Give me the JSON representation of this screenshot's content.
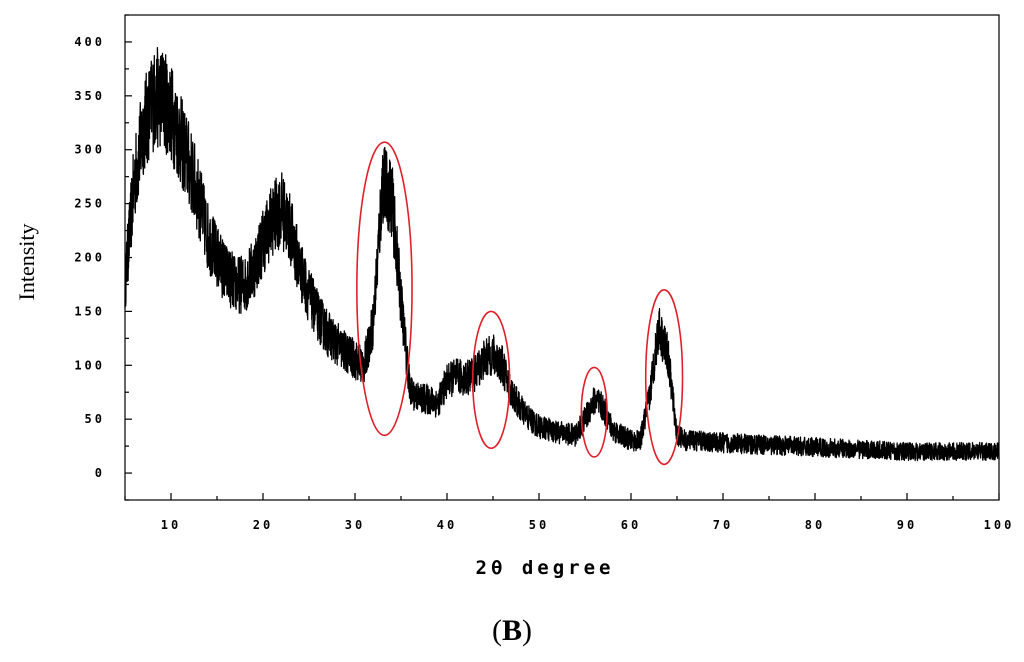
{
  "chart_data": {
    "type": "line",
    "xlabel": "2θ degree",
    "ylabel": "Intensity",
    "xlim": [
      5,
      100
    ],
    "ylim": [
      -25,
      425
    ],
    "x_ticks": [
      10,
      20,
      30,
      40,
      50,
      60,
      70,
      80,
      90,
      100
    ],
    "y_ticks": [
      0,
      50,
      100,
      150,
      200,
      250,
      300,
      350,
      400
    ],
    "grid": false,
    "legend": "none",
    "line_color": "#000000",
    "highlight_color": "#e0202a",
    "series": [
      {
        "x": [
          5,
          6,
          7,
          8,
          9,
          10,
          11,
          12,
          13,
          14,
          15,
          16,
          17,
          18,
          19,
          20,
          21,
          22,
          23,
          24,
          25,
          26,
          27,
          28,
          29,
          30,
          31,
          32,
          33,
          34,
          35,
          36,
          37,
          38,
          39,
          40,
          41,
          42,
          43,
          44,
          45,
          46,
          47,
          48,
          49,
          50,
          52,
          54,
          55,
          56,
          57,
          58,
          59,
          60,
          61,
          62,
          63,
          64,
          65,
          66,
          67,
          70,
          75,
          80,
          85,
          90,
          95,
          100
        ],
        "y": [
          175,
          270,
          320,
          345,
          350,
          335,
          310,
          285,
          255,
          220,
          200,
          185,
          175,
          175,
          190,
          215,
          235,
          245,
          225,
          190,
          165,
          145,
          130,
          120,
          112,
          105,
          100,
          140,
          270,
          255,
          160,
          75,
          70,
          68,
          65,
          85,
          90,
          88,
          92,
          105,
          110,
          100,
          75,
          60,
          50,
          43,
          38,
          35,
          50,
          68,
          60,
          40,
          35,
          30,
          30,
          70,
          135,
          110,
          35,
          30,
          30,
          28,
          26,
          24,
          22,
          20,
          20,
          20
        ]
      }
    ],
    "highlighted_peaks": [
      {
        "center_x": 33.2,
        "x_halfwidth": 3.0,
        "y_top": 307,
        "y_bottom": 35
      },
      {
        "center_x": 44.8,
        "x_halfwidth": 2.0,
        "y_top": 150,
        "y_bottom": 23
      },
      {
        "center_x": 56.0,
        "x_halfwidth": 1.4,
        "y_top": 98,
        "y_bottom": 15
      },
      {
        "center_x": 63.6,
        "x_halfwidth": 2.0,
        "y_top": 170,
        "y_bottom": 8
      }
    ]
  },
  "panel_label": "B"
}
